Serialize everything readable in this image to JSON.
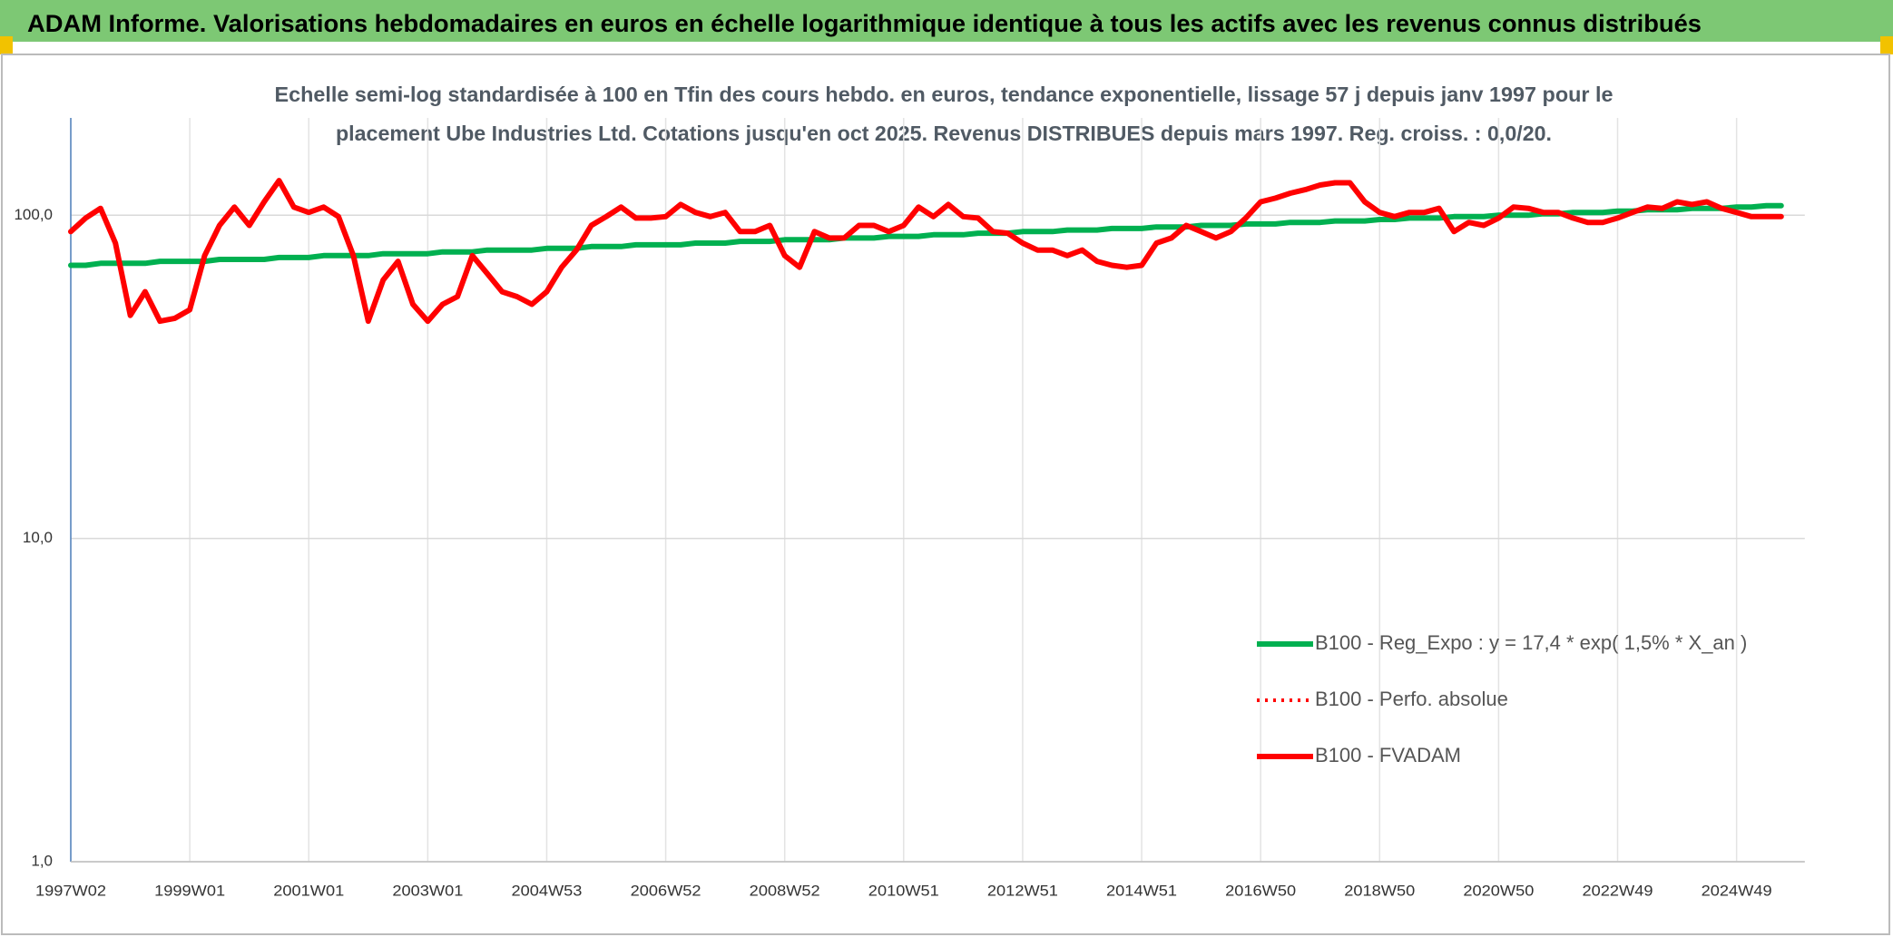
{
  "header": {
    "title": "ADAM Informe. Valorisations hebdomadaires en euros en échelle logarithmique identique à tous les actifs avec les revenus connus distribués"
  },
  "chart_data": {
    "type": "line",
    "subtitle": [
      "Echelle semi-log standardisée à 100 en Tfin des cours hebdo. en euros, tendance exponentielle, lissage 57 j depuis janv 1997 pour le",
      "placement Ube Industries Ltd. Cotations jusqu'en oct 2025. Revenus DISTRIBUES depuis mars 1997. Reg. croiss. : 0,0/20."
    ],
    "categories": [
      "1997W02",
      null,
      null,
      null,
      null,
      null,
      null,
      null,
      "1999W01",
      null,
      null,
      null,
      null,
      null,
      null,
      null,
      "2001W01",
      null,
      null,
      null,
      null,
      null,
      null,
      null,
      "2003W01",
      null,
      null,
      null,
      null,
      null,
      null,
      null,
      "2004W53",
      null,
      null,
      null,
      null,
      null,
      null,
      null,
      "2006W52",
      null,
      null,
      null,
      null,
      null,
      null,
      null,
      "2008W52",
      null,
      null,
      null,
      null,
      null,
      null,
      null,
      "2010W51",
      null,
      null,
      null,
      null,
      null,
      null,
      null,
      "2012W51",
      null,
      null,
      null,
      null,
      null,
      null,
      null,
      "2014W51",
      null,
      null,
      null,
      null,
      null,
      null,
      null,
      "2016W50",
      null,
      null,
      null,
      null,
      null,
      null,
      null,
      "2018W50",
      null,
      null,
      null,
      null,
      null,
      null,
      null,
      "2020W50",
      null,
      null,
      null,
      null,
      null,
      null,
      null,
      "2022W49",
      null,
      null,
      null,
      null,
      null,
      null,
      null,
      "2024W49",
      null,
      null,
      null
    ],
    "log_scale": true,
    "ylim": [
      1,
      200
    ],
    "yticks": [
      {
        "value": 1,
        "label": "1,0"
      },
      {
        "value": 10,
        "label": "10,0"
      },
      {
        "value": 100,
        "label": "100,0"
      }
    ],
    "grid": true,
    "legend": "right",
    "series": [
      {
        "name": "B100 - Reg_Expo : y = 17,4 * exp( 1,5% *  X_an )",
        "color": "#00b050",
        "line_style": "solid",
        "values": [
          70,
          70,
          71,
          71,
          71,
          71,
          72,
          72,
          72,
          72,
          73,
          73,
          73,
          73,
          74,
          74,
          74,
          75,
          75,
          75,
          75,
          76,
          76,
          76,
          76,
          77,
          77,
          77,
          78,
          78,
          78,
          78,
          79,
          79,
          79,
          80,
          80,
          80,
          81,
          81,
          81,
          81,
          82,
          82,
          82,
          83,
          83,
          83,
          84,
          84,
          84,
          84,
          85,
          85,
          85,
          86,
          86,
          86,
          87,
          87,
          87,
          88,
          88,
          88,
          89,
          89,
          89,
          90,
          90,
          90,
          91,
          91,
          91,
          92,
          92,
          92,
          93,
          93,
          93,
          94,
          94,
          94,
          95,
          95,
          95,
          96,
          96,
          96,
          97,
          97,
          98,
          98,
          98,
          99,
          99,
          99,
          100,
          100,
          100,
          101,
          101,
          102,
          102,
          102,
          103,
          103,
          104,
          104,
          104,
          105,
          105,
          105,
          106,
          106,
          107,
          107
        ]
      },
      {
        "name": "B100 - Perfo. absolue",
        "color": "#ff0000",
        "line_style": "dotted",
        "values": [
          89,
          98,
          105,
          82,
          49,
          58,
          47,
          48,
          51,
          75,
          93,
          106,
          93,
          110,
          128,
          106,
          102,
          106,
          99,
          75,
          47,
          63,
          72,
          53,
          47,
          53,
          56,
          75,
          66,
          58,
          56,
          53,
          58,
          69,
          78,
          93,
          99,
          106,
          98,
          98,
          99,
          108,
          102,
          99,
          102,
          89,
          89,
          93,
          75,
          69,
          89,
          85,
          85,
          93,
          93,
          89,
          93,
          106,
          99,
          108,
          99,
          98,
          89,
          88,
          82,
          78,
          78,
          75,
          78,
          72,
          70,
          69,
          70,
          82,
          85,
          93,
          89,
          85,
          89,
          98,
          110,
          113,
          117,
          120,
          124,
          126,
          126,
          110,
          102,
          99,
          102,
          102,
          105,
          89,
          95,
          93,
          98,
          106,
          105,
          102,
          102,
          98,
          95,
          95,
          98,
          102,
          106,
          105,
          110,
          108,
          110,
          105,
          102,
          99,
          99,
          99
        ]
      },
      {
        "name": "B100 - FVADAM",
        "color": "#ff0000",
        "line_style": "solid",
        "values": [
          89,
          98,
          105,
          82,
          49,
          58,
          47,
          48,
          51,
          75,
          93,
          106,
          93,
          110,
          128,
          106,
          102,
          106,
          99,
          75,
          47,
          63,
          72,
          53,
          47,
          53,
          56,
          75,
          66,
          58,
          56,
          53,
          58,
          69,
          78,
          93,
          99,
          106,
          98,
          98,
          99,
          108,
          102,
          99,
          102,
          89,
          89,
          93,
          75,
          69,
          89,
          85,
          85,
          93,
          93,
          89,
          93,
          106,
          99,
          108,
          99,
          98,
          89,
          88,
          82,
          78,
          78,
          75,
          78,
          72,
          70,
          69,
          70,
          82,
          85,
          93,
          89,
          85,
          89,
          98,
          110,
          113,
          117,
          120,
          124,
          126,
          126,
          110,
          102,
          99,
          102,
          102,
          105,
          89,
          95,
          93,
          98,
          106,
          105,
          102,
          102,
          98,
          95,
          95,
          98,
          102,
          106,
          105,
          110,
          108,
          110,
          105,
          102,
          99,
          99,
          99
        ]
      }
    ]
  }
}
